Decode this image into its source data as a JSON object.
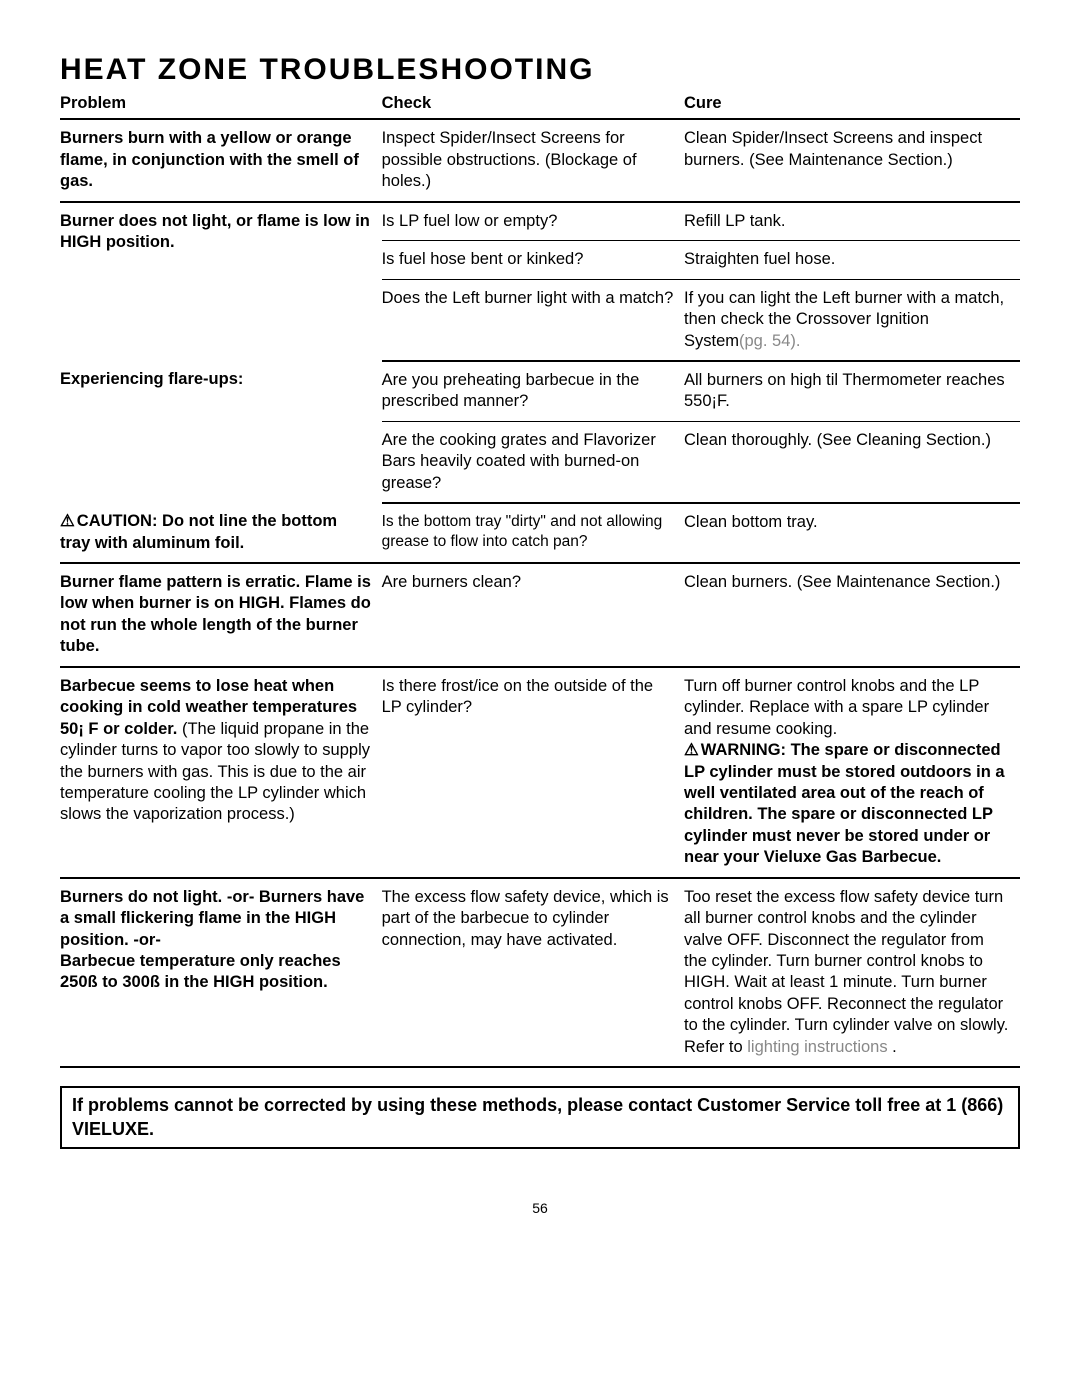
{
  "page_title": "HEAT ZONE TROUBLESHOOTING",
  "headers": {
    "problem": "Problem",
    "check": "Check",
    "cure": "Cure"
  },
  "rows": [
    {
      "problem_bold": "Burners burn with a yellow or orange flame, in conjunction with the smell of gas.",
      "check": "Inspect Spider/Insect Screens for possible obstructions. (Blockage of holes.)",
      "cure": "Clean Spider/Insect Screens and inspect burners. (See Maintenance Section.)"
    },
    {
      "problem_bold": "Burner does not light, or flame is low in HIGH position.",
      "check": "Is LP fuel low or empty?",
      "cure": "Refill LP tank."
    },
    {
      "check": "Is fuel hose bent or kinked?",
      "cure": "Straighten fuel hose."
    },
    {
      "check": "Does the Left burner light with a match?",
      "cure_a": "If you can light the Left burner with a match, then check the Crossover Ignition System",
      "cure_gray": "(pg. 54).",
      "cure_b": ""
    },
    {
      "problem_bold": "Experiencing flare-ups:",
      "check": "Are you preheating barbecue in the prescribed manner?",
      "cure": "All burners on high til Thermometer reaches 550¡F."
    },
    {
      "check": "Are the cooking grates and Flavorizer Bars heavily coated with burned-on grease?",
      "cure": "Clean thoroughly. (See Cleaning Section.)"
    },
    {
      "problem_tri": true,
      "problem_bold": "CAUTION: Do not line the bottom tray with aluminum foil.",
      "check": "Is the bottom tray \"dirty\" and not allowing grease to flow into catch pan?",
      "cure": "Clean bottom tray."
    },
    {
      "problem_bold": "Burner flame pattern is erratic. Flame is low when burner is on HIGH. Flames do not run the whole length of the burner tube.",
      "check": "Are burners clean?",
      "cure": "Clean burners. (See Maintenance Section.)"
    },
    {
      "problem_bold": "Barbecue seems to lose heat when cooking in cold weather temperatures 50¡ F or colder.",
      "problem_plain": " (The liquid propane in the cylinder turns to vapor too slowly to supply the burners with gas. This is due to the air temperature cooling the LP cylinder which slows the vaporization process.)",
      "check": "Is there frost/ice on the outside of the LP cylinder?",
      "cure_a": "Turn off burner control knobs and the LP cylinder. Replace with a spare LP cylinder and resume cooking.",
      "cure_warning_tri": true,
      "cure_warning_bold": "WARNING: The spare or disconnected LP cylinder must be stored outdoors in a well ventilated area out of the reach of children. The spare or disconnected LP cylinder must never be stored under or near your Vieluxe Gas Barbecue."
    },
    {
      "problem_bold": "Burners do not light. -or- Burners have a small flickering flame in the HIGH position. -or-\nBarbecue temperature only reaches 250ß to 300ß in the HIGH position.",
      "check": "The excess flow safety device, which is part of the barbecue to cylinder connection, may have activated.",
      "cure": "Too reset the excess flow safety device turn all burner control knobs and  the cylinder valve OFF. Disconnect the regulator from the cylinder. Turn burner control knobs to HIGH. Wait at least 1 minute. Turn burner control knobs OFF. Reconnect the regulator to the cylinder. Turn cylinder valve on slowly. Refer to ",
      "cure_gray": "lighting instructions",
      "cure_b": " ."
    }
  ],
  "footer_text": "If problems cannot be corrected by using these methods, please contact Customer Service toll free at 1 (866) VIELUXE.",
  "page_number": "56"
}
